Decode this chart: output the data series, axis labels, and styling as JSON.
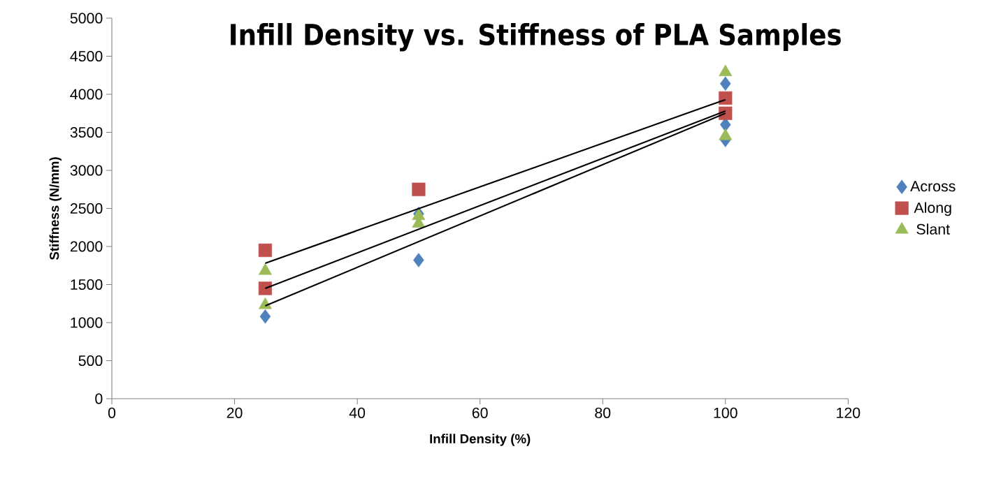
{
  "chart_data": {
    "type": "scatter",
    "title": "Infill Density vs. Stiffness of PLA Samples",
    "xlabel": "Infill Density (%)",
    "ylabel": "Stiffness (N/mm)",
    "xlim": [
      0,
      120
    ],
    "xticks": [
      0,
      20,
      40,
      60,
      80,
      100,
      120
    ],
    "ylim": [
      0,
      5000
    ],
    "yticks": [
      0,
      500,
      1000,
      1500,
      2000,
      2500,
      3000,
      3500,
      4000,
      4500,
      5000
    ],
    "grid": false,
    "legend": "right",
    "series": [
      {
        "name": "Across",
        "type": "scatter",
        "marker": "diamond",
        "color": "#4f81bd",
        "x": [
          25,
          50,
          50,
          100,
          100,
          100
        ],
        "values": [
          1080,
          2430,
          1820,
          4140,
          3600,
          3400
        ]
      },
      {
        "name": "Along",
        "type": "scatter",
        "marker": "square",
        "color": "#c0504d",
        "x": [
          25,
          25,
          50,
          100,
          100
        ],
        "values": [
          1950,
          1450,
          2750,
          3950,
          3750
        ]
      },
      {
        "name": "Slant",
        "type": "scatter",
        "marker": "triangle",
        "color": "#9bbb59",
        "x": [
          25,
          25,
          50,
          50,
          100,
          100
        ],
        "values": [
          1680,
          1230,
          2400,
          2300,
          4290,
          3450
        ]
      },
      {
        "type": "line",
        "marker": "none",
        "color": "#000000",
        "x": [
          25,
          100
        ],
        "values": [
          1780,
          3930
        ]
      },
      {
        "type": "line",
        "marker": "none",
        "color": "#000000",
        "x": [
          25,
          100
        ],
        "values": [
          1450,
          3780
        ]
      },
      {
        "type": "line",
        "marker": "none",
        "color": "#000000",
        "x": [
          25,
          100
        ],
        "values": [
          1220,
          3750
        ]
      }
    ]
  }
}
